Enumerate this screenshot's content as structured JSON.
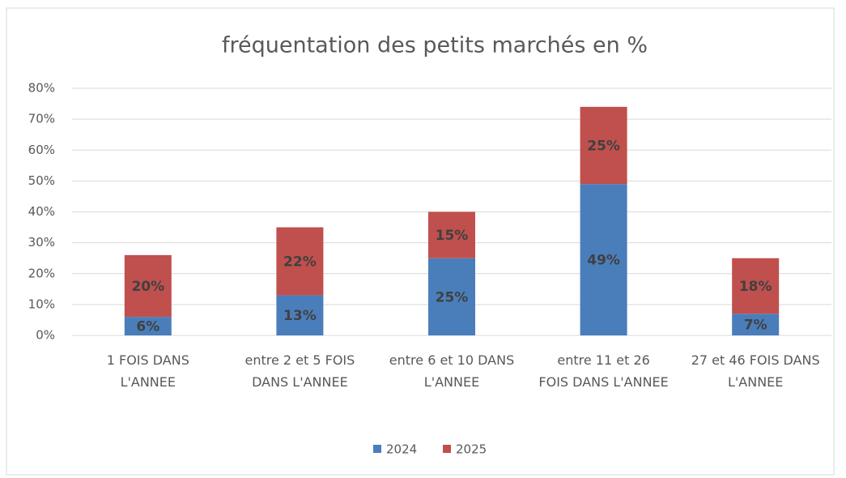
{
  "chart_data": {
    "type": "bar",
    "stacked": true,
    "title": "fréquentation des petits marchés en %",
    "categories": [
      "1 FOIS DANS L'ANNEE",
      "entre 2 et 5 FOIS DANS L'ANNEE",
      "entre 6 et 10 DANS L'ANNEE",
      "entre 11 et 26 FOIS DANS L'ANNEE",
      "27 et 46 FOIS DANS L'ANNEE"
    ],
    "series": [
      {
        "name": "2024",
        "color": "#4a7ebb",
        "values": [
          6,
          13,
          25,
          49,
          7
        ],
        "value_labels": [
          "6%",
          "13%",
          "25%",
          "49%",
          "7%"
        ]
      },
      {
        "name": "2025",
        "color": "#c0504d",
        "values": [
          20,
          22,
          15,
          25,
          18
        ],
        "value_labels": [
          "20%",
          "22%",
          "15%",
          "25%",
          "18%"
        ]
      }
    ],
    "ylim": [
      0,
      80
    ],
    "yticks": [
      {
        "value": 0,
        "label": "0%"
      },
      {
        "value": 10,
        "label": "10%"
      },
      {
        "value": 20,
        "label": "20%"
      },
      {
        "value": 30,
        "label": "30%"
      },
      {
        "value": 40,
        "label": "40%"
      },
      {
        "value": 50,
        "label": "50%"
      },
      {
        "value": 60,
        "label": "60%"
      },
      {
        "value": 70,
        "label": "70%"
      },
      {
        "value": 80,
        "label": "80%"
      }
    ],
    "grid": true,
    "legend": "bottom"
  }
}
